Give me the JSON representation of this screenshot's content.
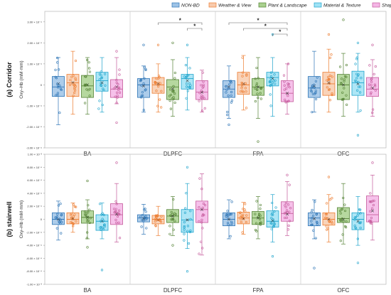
{
  "chart_data": {
    "type": "box",
    "legend": {
      "placement": "top-right",
      "entries": [
        "NON-BD",
        "Weather & View",
        "Plant & Landscape",
        "Material & Texture",
        "Shapes & Forms"
      ]
    },
    "colors": {
      "fill": [
        "#9dc3e6",
        "#f8cbad",
        "#a9d18e",
        "#9fe2f5",
        "#f4b6e6"
      ],
      "stroke": [
        "#2e75b6",
        "#ed7d31",
        "#548235",
        "#1fa4cc",
        "#c55a9b"
      ],
      "point": [
        "#2e75b6",
        "#ed7d31",
        "#548235",
        "#1fa4cc",
        "#c55a9b"
      ]
    },
    "categories": [
      "BA",
      "DLPFC",
      "FPA",
      "OFC"
    ],
    "panels": [
      {
        "title": "(a) Corridor",
        "ylabel": "Oxy–Hb (mM·mm)",
        "ylim": [
          -3.0,
          3.5
        ],
        "yticks": [
          -3.0,
          -2.0,
          -1.0,
          0,
          1.0,
          2.0,
          3.0
        ],
        "ytick_labels": [
          "-3.00 × 10⁻⁴",
          "-2.00 × 10⁻⁴",
          "-1.00 × 10⁻⁴",
          "0",
          "1.00 × 10⁻⁴",
          "2.00 × 10⁻⁴",
          "3.00 × 10⁻⁴"
        ],
        "significance": [
          {
            "category": "DLPFC",
            "from": 1,
            "to": 4,
            "label": "*"
          },
          {
            "category": "DLPFC",
            "from": 3,
            "to": 4,
            "label": "*"
          },
          {
            "category": "FPA",
            "from": 0,
            "to": 4,
            "label": "*"
          },
          {
            "category": "FPA",
            "from": 1,
            "to": 4,
            "label": "*"
          },
          {
            "category": "FPA",
            "from": 3,
            "to": 4,
            "label": "*"
          }
        ],
        "boxes": [
          [
            {
              "min": -1.9,
              "q1": -0.55,
              "median": -0.1,
              "q3": 0.4,
              "max": 1.3,
              "mean": 0.05,
              "outliers": []
            },
            {
              "min": -1.4,
              "q1": -0.55,
              "median": 0.1,
              "q3": 0.5,
              "max": 1.6,
              "mean": 0.1,
              "outliers": []
            },
            {
              "min": -1.4,
              "q1": -0.6,
              "median": -0.05,
              "q3": 0.45,
              "max": 1.3,
              "mean": 0.0,
              "outliers": []
            },
            {
              "min": -1.3,
              "q1": -0.3,
              "median": 0.2,
              "q3": 0.6,
              "max": 1.3,
              "mean": 0.1,
              "outliers": []
            },
            {
              "min": -0.9,
              "q1": -0.6,
              "median": -0.2,
              "q3": 0.25,
              "max": 1.3,
              "mean": -0.1,
              "outliers": [
                -1.8,
                1.6
              ]
            }
          ],
          [
            {
              "min": -1.3,
              "q1": -0.6,
              "median": 0.0,
              "q3": 0.3,
              "max": 0.9,
              "mean": -0.05,
              "outliers": [
                1.9
              ]
            },
            {
              "min": -1.3,
              "q1": -0.4,
              "median": 0.0,
              "q3": 0.35,
              "max": 1.0,
              "mean": 0.05,
              "outliers": [
                1.9
              ]
            },
            {
              "min": -1.5,
              "q1": -0.7,
              "median": -0.1,
              "q3": 0.25,
              "max": 1.2,
              "mean": -0.2,
              "outliers": [
                2.0
              ]
            },
            {
              "min": -1.2,
              "q1": -0.2,
              "median": 0.3,
              "q3": 0.5,
              "max": 1.3,
              "mean": 0.2,
              "outliers": [
                1.9
              ]
            },
            {
              "min": -1.3,
              "q1": -0.7,
              "median": -0.35,
              "q3": 0.2,
              "max": 0.7,
              "mean": -0.35,
              "outliers": []
            }
          ],
          [
            {
              "min": -1.6,
              "q1": -0.6,
              "median": -0.2,
              "q3": 0.2,
              "max": 0.9,
              "mean": -0.1,
              "outliers": [
                -1.9
              ]
            },
            {
              "min": -1.2,
              "q1": -0.45,
              "median": 0.0,
              "q3": 0.6,
              "max": 1.4,
              "mean": 0.05,
              "outliers": []
            },
            {
              "min": -1.6,
              "q1": -0.5,
              "median": -0.1,
              "q3": 0.3,
              "max": 1.3,
              "mean": -0.1,
              "outliers": [
                -2.7
              ]
            },
            {
              "min": -1.5,
              "q1": -0.05,
              "median": 0.35,
              "q3": 0.6,
              "max": 1.3,
              "mean": 0.3,
              "outliers": [
                2.4
              ]
            },
            {
              "min": -1.4,
              "q1": -0.8,
              "median": -0.4,
              "q3": 0.2,
              "max": 1.0,
              "mean": -0.4,
              "outliers": []
            }
          ],
          [
            {
              "min": -1.3,
              "q1": -0.6,
              "median": -0.15,
              "q3": 0.4,
              "max": 1.6,
              "mean": -0.05,
              "outliers": []
            },
            {
              "min": -1.3,
              "q1": -0.5,
              "median": 0.05,
              "q3": 0.6,
              "max": 1.7,
              "mean": 0.1,
              "outliers": [
                2.4
              ]
            },
            {
              "min": -1.5,
              "q1": -0.7,
              "median": 0.0,
              "q3": 0.5,
              "max": 1.5,
              "mean": 0.0,
              "outliers": [
                3.1
              ]
            },
            {
              "min": -1.3,
              "q1": -0.5,
              "median": 0.1,
              "q3": 0.65,
              "max": 1.5,
              "mean": 0.05,
              "outliers": [
                -2.4,
                2.0
              ]
            },
            {
              "min": -1.5,
              "q1": -0.55,
              "median": -0.2,
              "q3": 0.35,
              "max": 1.2,
              "mean": -0.15,
              "outliers": [
                1.9
              ]
            }
          ]
        ]
      },
      {
        "title": "(b) stairwell",
        "ylabel": "Oxy–Hb (mM·mm)",
        "ylim": [
          -10.0,
          10.0
        ],
        "yticks": [
          -10.0,
          -8.0,
          -6.0,
          -4.0,
          -2.0,
          0,
          2.0,
          4.0,
          6.0,
          8.0,
          10.0
        ],
        "ytick_labels": [
          "-1.00 × 10⁻³",
          "-8.00 × 10⁻⁴",
          "-6.00 × 10⁻⁴",
          "-4.00 × 10⁻⁴",
          "-2.00 × 10⁻⁴",
          "0",
          "2.00 × 10⁻⁴",
          "4.00 × 10⁻⁴",
          "6.00 × 10⁻⁴",
          "8.00 × 10⁻⁴",
          "1.00 × 10⁻³"
        ],
        "significance": [],
        "boxes": [
          [
            {
              "min": -3.2,
              "q1": -0.8,
              "median": 0.0,
              "q3": 1.0,
              "max": 2.8,
              "mean": 0.0,
              "outliers": []
            },
            {
              "min": -2.0,
              "q1": -0.7,
              "median": 0.0,
              "q3": 1.0,
              "max": 2.5,
              "mean": 0.1,
              "outliers": []
            },
            {
              "min": -3.0,
              "q1": -0.6,
              "median": 0.3,
              "q3": 1.3,
              "max": 3.0,
              "mean": 0.3,
              "outliers": [
                -4.3,
                5.9
              ]
            },
            {
              "min": -3.0,
              "q1": -1.7,
              "median": -0.3,
              "q3": 0.7,
              "max": 2.5,
              "mean": -0.3,
              "outliers": [
                -7.8
              ]
            },
            {
              "min": -3.5,
              "q1": -0.8,
              "median": 0.7,
              "q3": 2.4,
              "max": 5.5,
              "mean": 0.8,
              "outliers": [
                8.7
              ]
            }
          ],
          [
            {
              "min": -2.3,
              "q1": -0.4,
              "median": 0.2,
              "q3": 0.7,
              "max": 2.3,
              "mean": 0.1,
              "outliers": []
            },
            {
              "min": -2.5,
              "q1": -0.7,
              "median": 0.0,
              "q3": 0.6,
              "max": 2.0,
              "mean": -0.1,
              "outliers": []
            },
            {
              "min": -2.5,
              "q1": -0.5,
              "median": 0.5,
              "q3": 1.5,
              "max": 3.5,
              "mean": 0.5,
              "outliers": [
                -4.0
              ]
            },
            {
              "min": -4.5,
              "q1": -2.0,
              "median": -0.1,
              "q3": 1.5,
              "max": 5.5,
              "mean": -0.1,
              "outliers": [
                -8.0,
                8.0
              ]
            },
            {
              "min": -5.5,
              "q1": -0.5,
              "median": 1.5,
              "q3": 2.8,
              "max": 7.0,
              "mean": 1.5,
              "outliers": []
            }
          ],
          [
            {
              "min": -3.0,
              "q1": -1.0,
              "median": 0.0,
              "q3": 1.0,
              "max": 3.0,
              "mean": 0.0,
              "outliers": []
            },
            {
              "min": -2.3,
              "q1": -0.7,
              "median": 0.2,
              "q3": 1.1,
              "max": 2.6,
              "mean": 0.1,
              "outliers": []
            },
            {
              "min": -3.0,
              "q1": -0.8,
              "median": 0.2,
              "q3": 1.2,
              "max": 3.5,
              "mean": 0.2,
              "outliers": []
            },
            {
              "min": -3.5,
              "q1": -1.2,
              "median": -0.3,
              "q3": 1.3,
              "max": 3.8,
              "mean": -0.2,
              "outliers": [
                -5.7
              ]
            },
            {
              "min": -2.5,
              "q1": -0.3,
              "median": 0.9,
              "q3": 2.7,
              "max": 5.8,
              "mean": 0.8,
              "outliers": [
                6.8
              ]
            }
          ],
          [
            {
              "min": -3.0,
              "q1": -1.0,
              "median": 0.2,
              "q3": 1.0,
              "max": 3.0,
              "mean": 0.1,
              "outliers": [
                -7.5
              ]
            },
            {
              "min": -3.5,
              "q1": -0.9,
              "median": 0.0,
              "q3": 1.0,
              "max": 3.8,
              "mean": 0.0,
              "outliers": [
                6.5
              ]
            },
            {
              "min": -3.8,
              "q1": -0.5,
              "median": 0.1,
              "q3": 1.8,
              "max": 5.5,
              "mean": 0.0,
              "outliers": []
            },
            {
              "min": -4.0,
              "q1": -1.6,
              "median": 0.0,
              "q3": 1.0,
              "max": 3.5,
              "mean": -0.3,
              "outliers": [
                -6.7
              ]
            },
            {
              "min": -3.2,
              "q1": -0.4,
              "median": 0.7,
              "q3": 3.6,
              "max": 6.8,
              "mean": 1.3,
              "outliers": [
                8.7
              ]
            }
          ]
        ]
      }
    ]
  }
}
